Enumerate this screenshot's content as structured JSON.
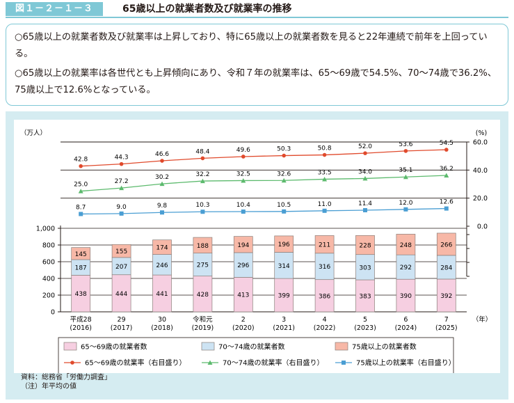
{
  "header": {
    "figure_label": "図１－２－１－３",
    "title": "65歳以上の就業者数及び就業率の推移"
  },
  "summary": {
    "points": [
      "○65歳以上の就業者数及び就業率は上昇しており、特に65歳以上の就業者数を見ると22年連続で前年を上回っている。",
      "○65歳以上の就業率は各世代とも上昇傾向にあり、令和７年の就業率は、65～69歳で54.5%、70～74歳で36.2%、75歳以上で12.6%となっている。"
    ]
  },
  "sources": {
    "source": "資料：総務省「労働力調査」",
    "note": "（注）年平均の値"
  },
  "colors": {
    "bar_65_69": "#f6cfe1",
    "bar_70_74": "#cde3f3",
    "bar_75plus": "#f7b8a7",
    "line_65_69": "#e04a2c",
    "line_70_74": "#5cba6d",
    "line_75plus": "#4a9ed3",
    "accent": "#7fc8d6"
  },
  "chart_data": {
    "type": "bar+line",
    "x_labels": [
      [
        "平成28",
        "(2016)"
      ],
      [
        "29",
        "(2017)"
      ],
      [
        "30",
        "(2018)"
      ],
      [
        "令和元",
        "(2019)"
      ],
      [
        "2",
        "(2020)"
      ],
      [
        "3",
        "(2021)"
      ],
      [
        "4",
        "(2022)"
      ],
      [
        "5",
        "(2023)"
      ],
      [
        "6",
        "(2024)"
      ],
      [
        "7",
        "(2025)"
      ]
    ],
    "x_unit": "（年）",
    "left_axis": {
      "unit": "（万人）",
      "min": 0,
      "max": 1000,
      "ticks": [
        "0",
        "200",
        "400",
        "600",
        "800",
        "1,000"
      ]
    },
    "right_axis": {
      "unit": "(%)",
      "min": 0,
      "max": 60,
      "ticks": [
        "0.0",
        "20.0",
        "40.0",
        "60.0"
      ]
    },
    "bars": [
      {
        "name": "65～69歳の就業者数",
        "values": [
          438,
          444,
          441,
          428,
          413,
          399,
          386,
          383,
          390,
          392
        ]
      },
      {
        "name": "70～74歳の就業者数",
        "values": [
          187,
          207,
          246,
          275,
          296,
          314,
          316,
          303,
          292,
          284
        ]
      },
      {
        "name": "75歳以上の就業者数",
        "values": [
          145,
          155,
          174,
          188,
          194,
          196,
          211,
          228,
          248,
          266
        ]
      }
    ],
    "lines": [
      {
        "name": "65～69歳の就業率（右目盛り）",
        "labels": [
          "42.8",
          "44.3",
          "46.6",
          "48.4",
          "49.6",
          "50.3",
          "50.8",
          "52.0",
          "53.6",
          "54.5"
        ],
        "values": [
          42.8,
          44.3,
          46.6,
          48.4,
          49.6,
          50.3,
          50.8,
          52.0,
          53.6,
          54.5
        ]
      },
      {
        "name": "70～74歳の就業率（右目盛り）",
        "labels": [
          "25.0",
          "27.2",
          "30.2",
          "32.2",
          "32.5",
          "32.6",
          "33.5",
          "34.0",
          "35.1",
          "36.2"
        ],
        "values": [
          25.0,
          27.2,
          30.2,
          32.2,
          32.5,
          32.6,
          33.5,
          34.0,
          35.1,
          36.2
        ]
      },
      {
        "name": "75歳以上の就業率（右目盛り）",
        "labels": [
          "8.7",
          "9.0",
          "9.8",
          "10.3",
          "10.4",
          "10.5",
          "11.0",
          "11.4",
          "12.0",
          "12.6"
        ],
        "values": [
          8.7,
          9.0,
          9.8,
          10.3,
          10.4,
          10.5,
          11.0,
          11.4,
          12.0,
          12.6
        ]
      }
    ]
  }
}
